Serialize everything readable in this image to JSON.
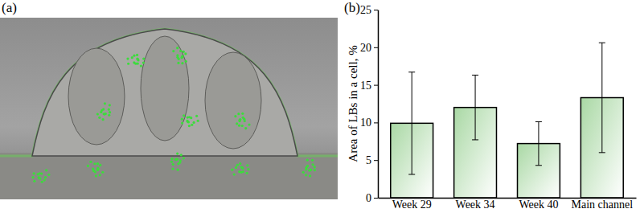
{
  "panels": [
    {
      "label": "(a)"
    },
    {
      "label": "(b)"
    }
  ],
  "chart_data": {
    "type": "bar",
    "y_label": "Area of LBs in a cell, %",
    "categories": [
      "Week 29",
      "Week 34",
      "Week 40",
      "Main channel"
    ],
    "values": [
      9.9,
      12.0,
      7.2,
      13.3
    ],
    "errors": [
      6.8,
      4.3,
      2.9,
      7.3
    ],
    "color": "#a9d8a4",
    "ylim": [
      0,
      25
    ],
    "yticks": [
      0,
      5,
      10,
      15,
      20,
      25
    ],
    "grid": false
  }
}
